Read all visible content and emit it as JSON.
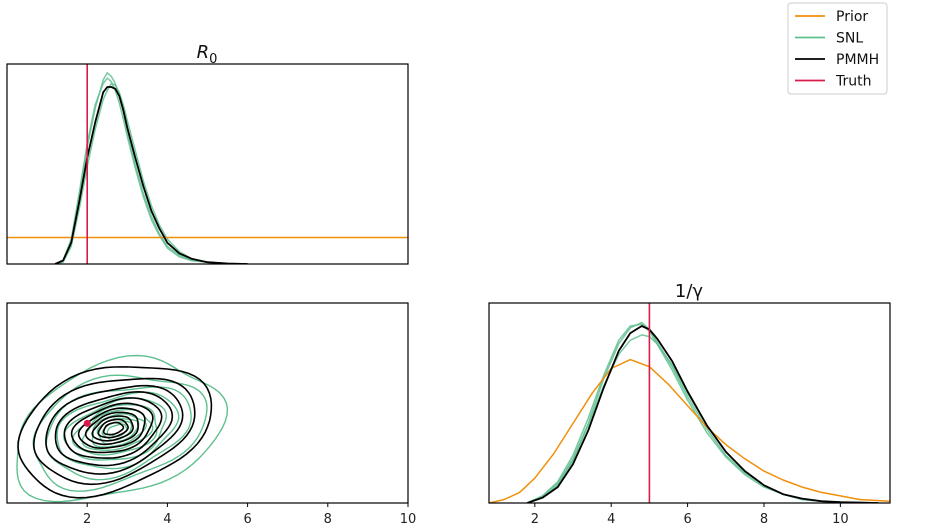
{
  "colors": {
    "prior": "#f0900a",
    "snl": "#5fc08f",
    "pmmh": "#000000",
    "truth": "#d81b4a"
  },
  "legend": {
    "placement": "top-right",
    "items": [
      {
        "label": "Prior",
        "color_key": "prior"
      },
      {
        "label": "SNL",
        "color_key": "snl"
      },
      {
        "label": "PMMH",
        "color_key": "pmmh"
      },
      {
        "label": "Truth",
        "color_key": "truth"
      }
    ]
  },
  "chart_data": [
    {
      "type": "line",
      "panel": "R0-marginal",
      "title": "R0",
      "title_main": "R",
      "title_sub": "0",
      "xlim": [
        0,
        10
      ],
      "ylim": [
        0,
        1.13
      ],
      "xticks": [],
      "grid": false,
      "truth": 2,
      "series": [
        {
          "name": "Prior",
          "color_key": "prior",
          "x": [
            0,
            10
          ],
          "y": [
            0.15,
            0.15
          ]
        },
        {
          "name": "PMMH",
          "color_key": "pmmh",
          "x": [
            1.2,
            1.4,
            1.6,
            1.8,
            2.0,
            2.2,
            2.4,
            2.5,
            2.6,
            2.7,
            2.8,
            2.9,
            3.0,
            3.2,
            3.4,
            3.6,
            3.8,
            4.0,
            4.3,
            4.6,
            5.0,
            5.5,
            6.0
          ],
          "y": [
            0.0,
            0.02,
            0.12,
            0.35,
            0.6,
            0.8,
            0.97,
            1.0,
            1.0,
            0.99,
            0.95,
            0.87,
            0.77,
            0.6,
            0.44,
            0.3,
            0.2,
            0.12,
            0.06,
            0.03,
            0.01,
            0.003,
            0.0
          ]
        },
        {
          "name": "SNL",
          "color_key": "snl",
          "x": [
            1.2,
            1.4,
            1.6,
            1.8,
            2.0,
            2.2,
            2.4,
            2.5,
            2.6,
            2.7,
            2.8,
            2.9,
            3.0,
            3.2,
            3.4,
            3.6,
            3.8,
            4.0,
            4.3,
            4.6,
            5.0,
            5.5,
            6.0
          ],
          "y": [
            0.0,
            0.02,
            0.13,
            0.38,
            0.66,
            0.88,
            1.04,
            1.08,
            1.06,
            1.02,
            0.95,
            0.86,
            0.75,
            0.56,
            0.4,
            0.27,
            0.17,
            0.1,
            0.05,
            0.02,
            0.01,
            0.002,
            0.0
          ]
        },
        {
          "name": "SNL",
          "color_key": "snl",
          "x": [
            1.2,
            1.4,
            1.6,
            1.8,
            2.0,
            2.2,
            2.4,
            2.5,
            2.6,
            2.7,
            2.8,
            2.9,
            3.0,
            3.2,
            3.4,
            3.6,
            3.8,
            4.0,
            4.3,
            4.6,
            5.0,
            5.5,
            6.0
          ],
          "y": [
            0.0,
            0.01,
            0.1,
            0.31,
            0.55,
            0.76,
            0.93,
            0.98,
            1.02,
            1.01,
            0.97,
            0.9,
            0.81,
            0.64,
            0.47,
            0.33,
            0.22,
            0.14,
            0.07,
            0.03,
            0.01,
            0.003,
            0.0
          ]
        },
        {
          "name": "SNL",
          "color_key": "snl",
          "x": [
            1.2,
            1.4,
            1.6,
            1.8,
            2.0,
            2.2,
            2.4,
            2.5,
            2.6,
            2.7,
            2.8,
            2.9,
            3.0,
            3.2,
            3.4,
            3.6,
            3.8,
            4.0,
            4.3,
            4.6,
            5.0,
            5.5,
            6.0
          ],
          "y": [
            0.0,
            0.02,
            0.14,
            0.4,
            0.68,
            0.9,
            1.02,
            1.05,
            1.03,
            0.98,
            0.91,
            0.82,
            0.72,
            0.54,
            0.38,
            0.25,
            0.16,
            0.09,
            0.04,
            0.02,
            0.01,
            0.002,
            0.0
          ]
        }
      ]
    },
    {
      "type": "contour",
      "panel": "joint",
      "xlim": [
        0,
        10
      ],
      "ylim": [
        0,
        11.3
      ],
      "xticks": [
        2,
        4,
        6,
        8,
        10
      ],
      "grid": false,
      "truth_point": {
        "x": 2,
        "y": 4.5
      },
      "pmmh_center": {
        "x": 2.65,
        "y": 4.2
      },
      "pmmh_radii": [
        [
          2.4,
          3.6
        ],
        [
          2.0,
          2.9
        ],
        [
          1.7,
          2.4
        ],
        [
          1.45,
          2.0
        ],
        [
          1.2,
          1.65
        ],
        [
          1.0,
          1.35
        ],
        [
          0.82,
          1.1
        ],
        [
          0.65,
          0.88
        ],
        [
          0.5,
          0.68
        ],
        [
          0.36,
          0.5
        ],
        [
          0.24,
          0.33
        ]
      ],
      "snl_center": {
        "x": 2.75,
        "y": 4.1
      },
      "snl_radii": [
        [
          2.6,
          3.9
        ],
        [
          2.15,
          3.1
        ],
        [
          1.8,
          2.5
        ],
        [
          1.5,
          2.05
        ],
        [
          1.25,
          1.7
        ],
        [
          1.03,
          1.38
        ],
        [
          0.84,
          1.12
        ],
        [
          0.66,
          0.9
        ],
        [
          0.5,
          0.69
        ],
        [
          0.36,
          0.5
        ],
        [
          0.24,
          0.33
        ]
      ]
    },
    {
      "type": "line",
      "panel": "gamma-marginal",
      "title": "1/γ",
      "xlim": [
        0.8,
        11.3
      ],
      "ylim": [
        0,
        1.13
      ],
      "xticks": [
        2,
        4,
        6,
        8,
        10
      ],
      "grid": false,
      "truth": 5,
      "series": [
        {
          "name": "Prior",
          "color_key": "prior",
          "x": [
            0.8,
            1.2,
            1.6,
            2.0,
            2.5,
            3.0,
            3.5,
            4.0,
            4.5,
            5.0,
            5.5,
            6.0,
            6.5,
            7.0,
            7.5,
            8.0,
            8.5,
            9.0,
            9.5,
            10.0,
            10.5,
            11.3
          ],
          "y": [
            0.0,
            0.02,
            0.06,
            0.14,
            0.28,
            0.45,
            0.62,
            0.76,
            0.81,
            0.77,
            0.67,
            0.55,
            0.43,
            0.33,
            0.25,
            0.18,
            0.13,
            0.09,
            0.06,
            0.04,
            0.02,
            0.01
          ]
        },
        {
          "name": "PMMH",
          "color_key": "pmmh",
          "x": [
            1.8,
            2.2,
            2.6,
            3.0,
            3.4,
            3.8,
            4.2,
            4.5,
            4.8,
            5.0,
            5.2,
            5.6,
            6.0,
            6.5,
            7.0,
            7.5,
            8.0,
            8.5,
            9.0,
            9.5,
            10.0,
            11.0
          ],
          "y": [
            0.0,
            0.03,
            0.09,
            0.22,
            0.41,
            0.65,
            0.86,
            0.96,
            1.0,
            0.98,
            0.93,
            0.8,
            0.63,
            0.44,
            0.29,
            0.18,
            0.1,
            0.05,
            0.025,
            0.01,
            0.005,
            0.0
          ]
        },
        {
          "name": "SNL",
          "color_key": "snl",
          "x": [
            1.8,
            2.2,
            2.6,
            3.0,
            3.4,
            3.8,
            4.2,
            4.5,
            4.8,
            5.0,
            5.2,
            5.6,
            6.0,
            6.5,
            7.0,
            7.5,
            8.0,
            8.5,
            9.0,
            9.5,
            10.0,
            11.0
          ],
          "y": [
            0.0,
            0.04,
            0.11,
            0.25,
            0.45,
            0.7,
            0.9,
            0.99,
            1.02,
            0.98,
            0.91,
            0.77,
            0.6,
            0.42,
            0.27,
            0.17,
            0.1,
            0.05,
            0.02,
            0.01,
            0.005,
            0.0
          ]
        },
        {
          "name": "SNL",
          "color_key": "snl",
          "x": [
            1.8,
            2.2,
            2.6,
            3.0,
            3.4,
            3.8,
            4.2,
            4.5,
            4.8,
            5.0,
            5.2,
            5.6,
            6.0,
            6.5,
            7.0,
            7.5,
            8.0,
            8.5,
            9.0,
            9.5,
            10.0,
            11.0
          ],
          "y": [
            0.0,
            0.03,
            0.1,
            0.24,
            0.44,
            0.66,
            0.84,
            0.92,
            0.95,
            0.94,
            0.9,
            0.78,
            0.62,
            0.44,
            0.29,
            0.18,
            0.1,
            0.05,
            0.02,
            0.01,
            0.005,
            0.0
          ]
        },
        {
          "name": "SNL",
          "color_key": "snl",
          "x": [
            1.8,
            2.2,
            2.6,
            3.0,
            3.4,
            3.8,
            4.2,
            4.5,
            4.8,
            5.0,
            5.2,
            5.6,
            6.0,
            6.5,
            7.0,
            7.5,
            8.0,
            8.5,
            9.0,
            9.5,
            10.0,
            11.0
          ],
          "y": [
            0.0,
            0.04,
            0.12,
            0.27,
            0.48,
            0.72,
            0.92,
            1.0,
            1.01,
            0.97,
            0.9,
            0.75,
            0.58,
            0.4,
            0.26,
            0.16,
            0.09,
            0.05,
            0.02,
            0.01,
            0.005,
            0.0
          ]
        }
      ]
    }
  ]
}
